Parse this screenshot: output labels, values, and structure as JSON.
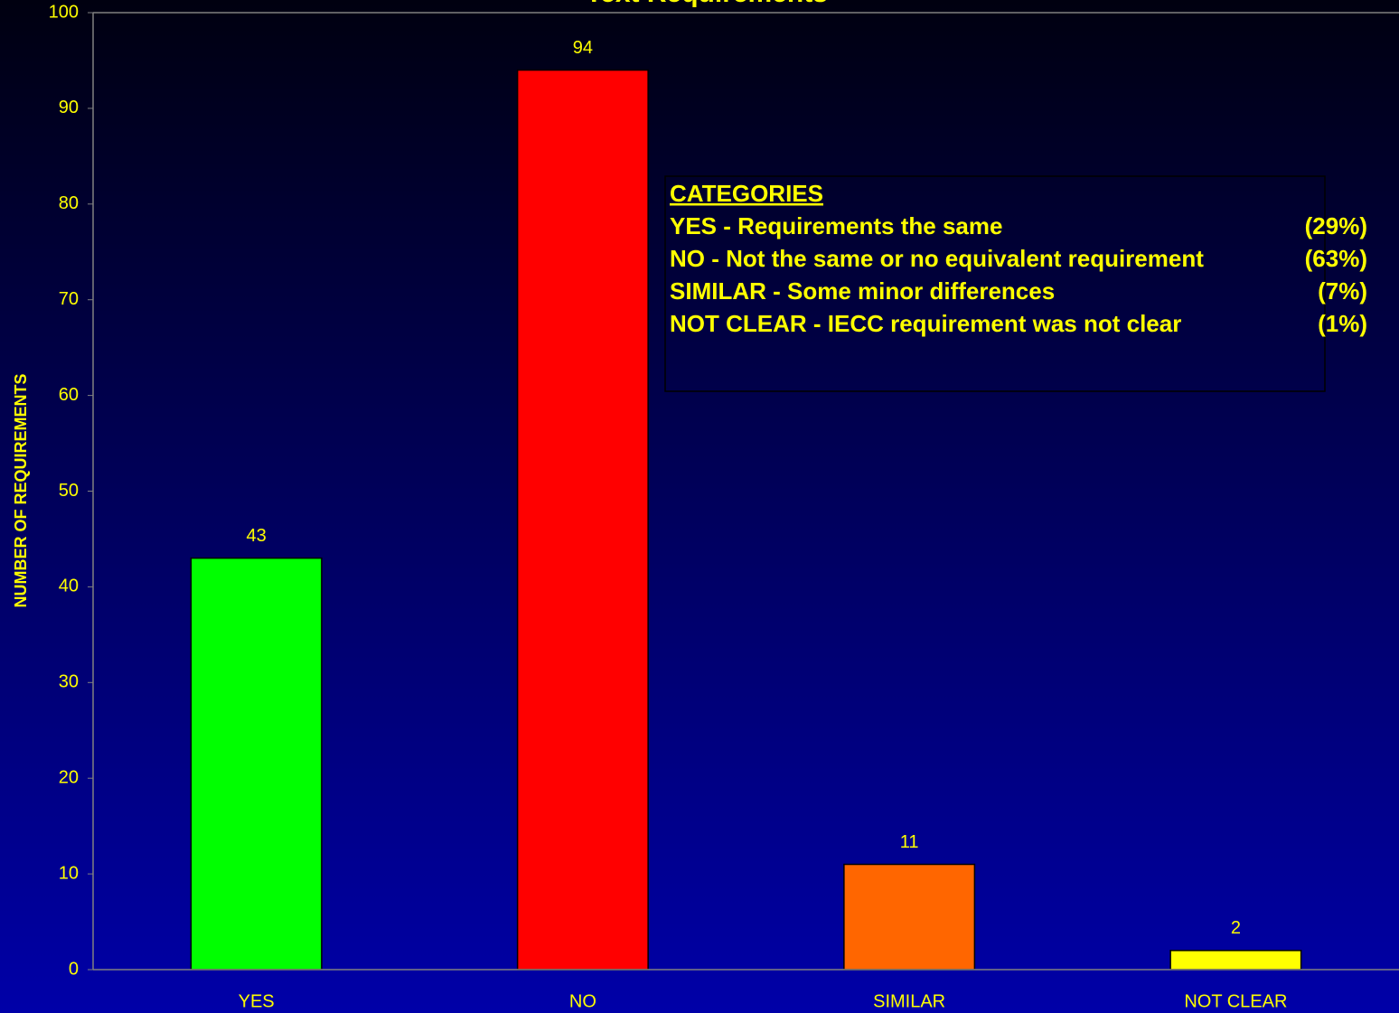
{
  "chart_data": {
    "type": "bar",
    "title": "Text Requirements",
    "y_label": "NUMBER OF REQUIREMENTS",
    "categories": [
      "YES",
      "NO",
      "SIMILAR",
      "NOT CLEAR"
    ],
    "values": [
      43,
      94,
      11,
      2
    ],
    "colors": [
      "#00ff00",
      "#ff0000",
      "#ff6600",
      "#ffff00"
    ],
    "ylim": [
      0,
      100
    ],
    "yticks": [
      0,
      10,
      20,
      30,
      40,
      50,
      60,
      70,
      80,
      90,
      100
    ],
    "legend": {
      "title": "CATEGORIES",
      "items": [
        {
          "text": "YES - Requirements the same",
          "percent": "(29%)"
        },
        {
          "text": "NO - Not the same or no equivalent requirement",
          "percent": "(63%)"
        },
        {
          "text": "SIMILAR - Some minor differences",
          "percent": "(7%)"
        },
        {
          "text": "NOT CLEAR - IECC requirement was not clear",
          "percent": "(1%)"
        }
      ]
    }
  }
}
